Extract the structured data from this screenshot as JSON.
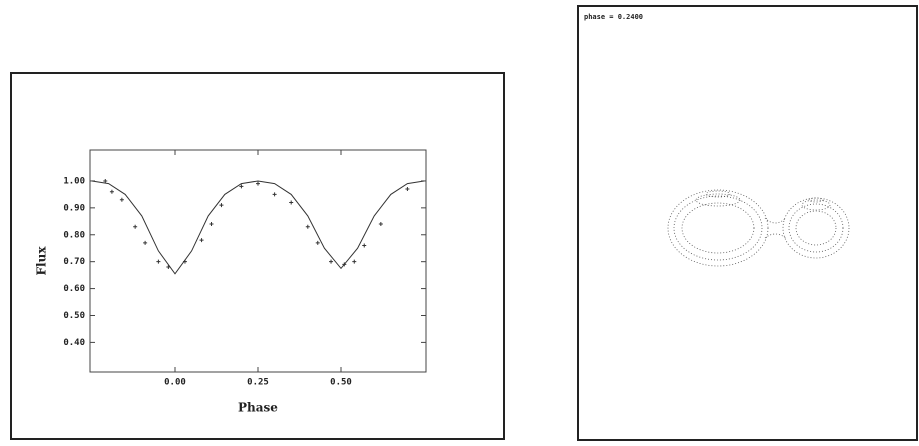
{
  "chart_data": {
    "type": "line",
    "xlabel": "Phase",
    "ylabel": "Flux",
    "xlim": [
      -0.256,
      0.756
    ],
    "ylim": [
      0.29,
      1.115
    ],
    "xticks": [
      {
        "value": 0,
        "label": "0.00"
      },
      {
        "value": 0.25,
        "label": "0.25"
      },
      {
        "value": 0.5,
        "label": "0.50"
      }
    ],
    "yticks": [
      {
        "value": 0.4,
        "label": "0.40"
      },
      {
        "value": 0.5,
        "label": "0.50"
      },
      {
        "value": 0.6,
        "label": "0.60"
      },
      {
        "value": 0.7,
        "label": "0.70"
      },
      {
        "value": 0.8,
        "label": "0.80"
      },
      {
        "value": 0.9,
        "label": "0.90"
      },
      {
        "value": 1,
        "label": "1.00"
      }
    ],
    "series": [
      {
        "type": "line",
        "color": "#333333",
        "x": [
          -0.25,
          -0.2,
          -0.15,
          -0.1,
          -0.05,
          0,
          0.05,
          0.1,
          0.15,
          0.2,
          0.25,
          0.3,
          0.35,
          0.4,
          0.45,
          0.5,
          0.55,
          0.6,
          0.65,
          0.7,
          0.75
        ],
        "values": [
          1.0,
          0.99,
          0.95,
          0.87,
          0.74,
          0.655,
          0.74,
          0.87,
          0.95,
          0.99,
          1.0,
          0.99,
          0.95,
          0.87,
          0.75,
          0.675,
          0.75,
          0.87,
          0.95,
          0.99,
          1.0
        ]
      },
      {
        "type": "scatter",
        "color": "#333333",
        "x": [
          -0.21,
          -0.19,
          -0.16,
          -0.12,
          -0.09,
          -0.05,
          -0.02,
          0.03,
          0.08,
          0.11,
          0.14,
          0.2,
          0.25,
          0.3,
          0.35,
          0.4,
          0.43,
          0.47,
          0.51,
          0.54,
          0.57,
          0.62,
          0.7
        ],
        "values": [
          1.0,
          0.96,
          0.93,
          0.83,
          0.77,
          0.7,
          0.68,
          0.7,
          0.78,
          0.84,
          0.91,
          0.98,
          0.99,
          0.95,
          0.92,
          0.83,
          0.77,
          0.7,
          0.69,
          0.7,
          0.76,
          0.84,
          0.97
        ]
      }
    ]
  },
  "model_view": {
    "label": "phase = 0.2400"
  }
}
